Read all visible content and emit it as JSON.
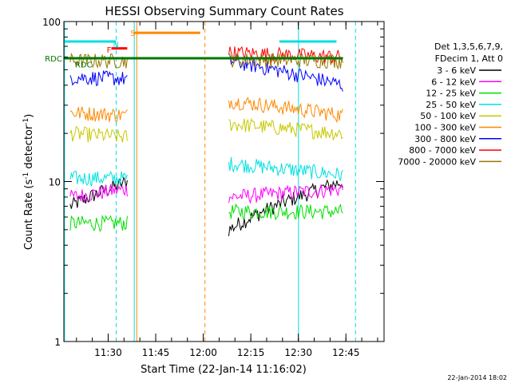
{
  "chart_data": {
    "type": "line",
    "title": "HESSI Observing Summary Count Rates",
    "xlabel": "Start Time (22-Jan-14 11:16:02)",
    "ylabel": "Count Rate (s^-1 detector^-1)",
    "ylabel_parts": {
      "main": "Count Rate (s",
      "sup1": "-1",
      "mid": " detector",
      "sup2": "-1",
      "end": ")"
    },
    "y_scale": "log",
    "ylim": [
      1,
      100
    ],
    "y_ticks": [
      {
        "v": 1,
        "label": "1"
      },
      {
        "v": 10,
        "label": "10"
      },
      {
        "v": 100,
        "label": "100"
      }
    ],
    "x_unit": "minutes after 11:16:02",
    "xlim": [
      0,
      101
    ],
    "x_ticks": [
      {
        "v": 13.97,
        "label": "11:30"
      },
      {
        "v": 28.97,
        "label": "11:45"
      },
      {
        "v": 43.97,
        "label": "12:00"
      },
      {
        "v": 58.97,
        "label": "12:15"
      },
      {
        "v": 73.97,
        "label": "12:30"
      },
      {
        "v": 88.97,
        "label": "12:45"
      }
    ],
    "legend": {
      "placement": "right",
      "header": [
        "Det 1,3,5,6,7,9,",
        "FDecim 1, Att 0"
      ]
    },
    "series": [
      {
        "name": "3 - 6 keV",
        "color": "#000000",
        "segments": [
          [
            2,
            7,
            20,
            10
          ],
          [
            52,
            5,
            88,
            10
          ]
        ]
      },
      {
        "name": "6 - 12 keV",
        "color": "#ff00ff",
        "segments": [
          [
            2,
            8,
            20,
            9
          ],
          [
            52,
            8,
            88,
            9
          ]
        ]
      },
      {
        "name": "12 - 25 keV",
        "color": "#00dd00",
        "segments": [
          [
            2,
            5.5,
            20,
            5.5
          ],
          [
            52,
            6.5,
            88,
            6.5
          ]
        ]
      },
      {
        "name": "25 - 50 keV",
        "color": "#00e0e0",
        "segments": [
          [
            2,
            10.5,
            20,
            10.5
          ],
          [
            52,
            13,
            88,
            11
          ]
        ]
      },
      {
        "name": "50 - 100 keV",
        "color": "#c8c800",
        "segments": [
          [
            2,
            20,
            20,
            19
          ],
          [
            52,
            23,
            88,
            20
          ]
        ]
      },
      {
        "name": "100 - 300 keV",
        "color": "#ff8800",
        "segments": [
          [
            2,
            27,
            20,
            26
          ],
          [
            52,
            32,
            88,
            26
          ]
        ]
      },
      {
        "name": "300 - 800 keV",
        "color": "#0000ff",
        "segments": [
          [
            2,
            45,
            20,
            44
          ],
          [
            52,
            57,
            88,
            40
          ]
        ]
      },
      {
        "name": "800 - 7000 keV",
        "color": "#ff0000",
        "segments": [
          [
            52,
            64,
            88,
            60
          ]
        ]
      },
      {
        "name": "7000 - 20000 keV",
        "color": "#997700",
        "segments": [
          [
            2,
            57,
            20,
            57
          ],
          [
            52,
            58,
            88,
            57
          ]
        ]
      }
    ],
    "flag_lines": [
      {
        "label": "N",
        "color": "#00e0e0",
        "y": 75,
        "x": [
          0,
          16.5
        ],
        "label_x": 15.5,
        "label_y": 72
      },
      {
        "label": "N",
        "color": "#00e0e0",
        "y": 75,
        "x": [
          68,
          86
        ],
        "label_x": null
      },
      {
        "label": "F",
        "color": "#ff0000",
        "y": 68,
        "x": [
          15,
          20
        ],
        "label_x": 13.5,
        "label_y": 67
      },
      {
        "label": "S",
        "color": "#ff8800",
        "y": 85,
        "x": [
          22,
          43
        ],
        "label_x": 21,
        "label_y": 85
      },
      {
        "label": "RDC",
        "color": "#007700",
        "y": 59,
        "x": [
          2,
          88
        ],
        "label_x": -6,
        "label_y": 59
      },
      {
        "label": "RDC",
        "color": "#007700",
        "y": 59,
        "x": [
          0,
          88
        ],
        "label_x": 3.5,
        "label_y": 54
      }
    ],
    "vlines": [
      {
        "x": 0.2,
        "color": "#00e0e0",
        "style": "solid"
      },
      {
        "x": 16.5,
        "color": "#00e0e0",
        "style": "dashed"
      },
      {
        "x": 22.2,
        "color": "#00e0e0",
        "style": "solid"
      },
      {
        "x": 23,
        "color": "#ff8800",
        "style": "solid"
      },
      {
        "x": 44.5,
        "color": "#ff8800",
        "style": "dashed"
      },
      {
        "x": 74,
        "color": "#00e0e0",
        "style": "solid"
      },
      {
        "x": 92,
        "color": "#00e0e0",
        "style": "dashed"
      }
    ],
    "timestamp": "22-Jan-2014 18:02"
  }
}
